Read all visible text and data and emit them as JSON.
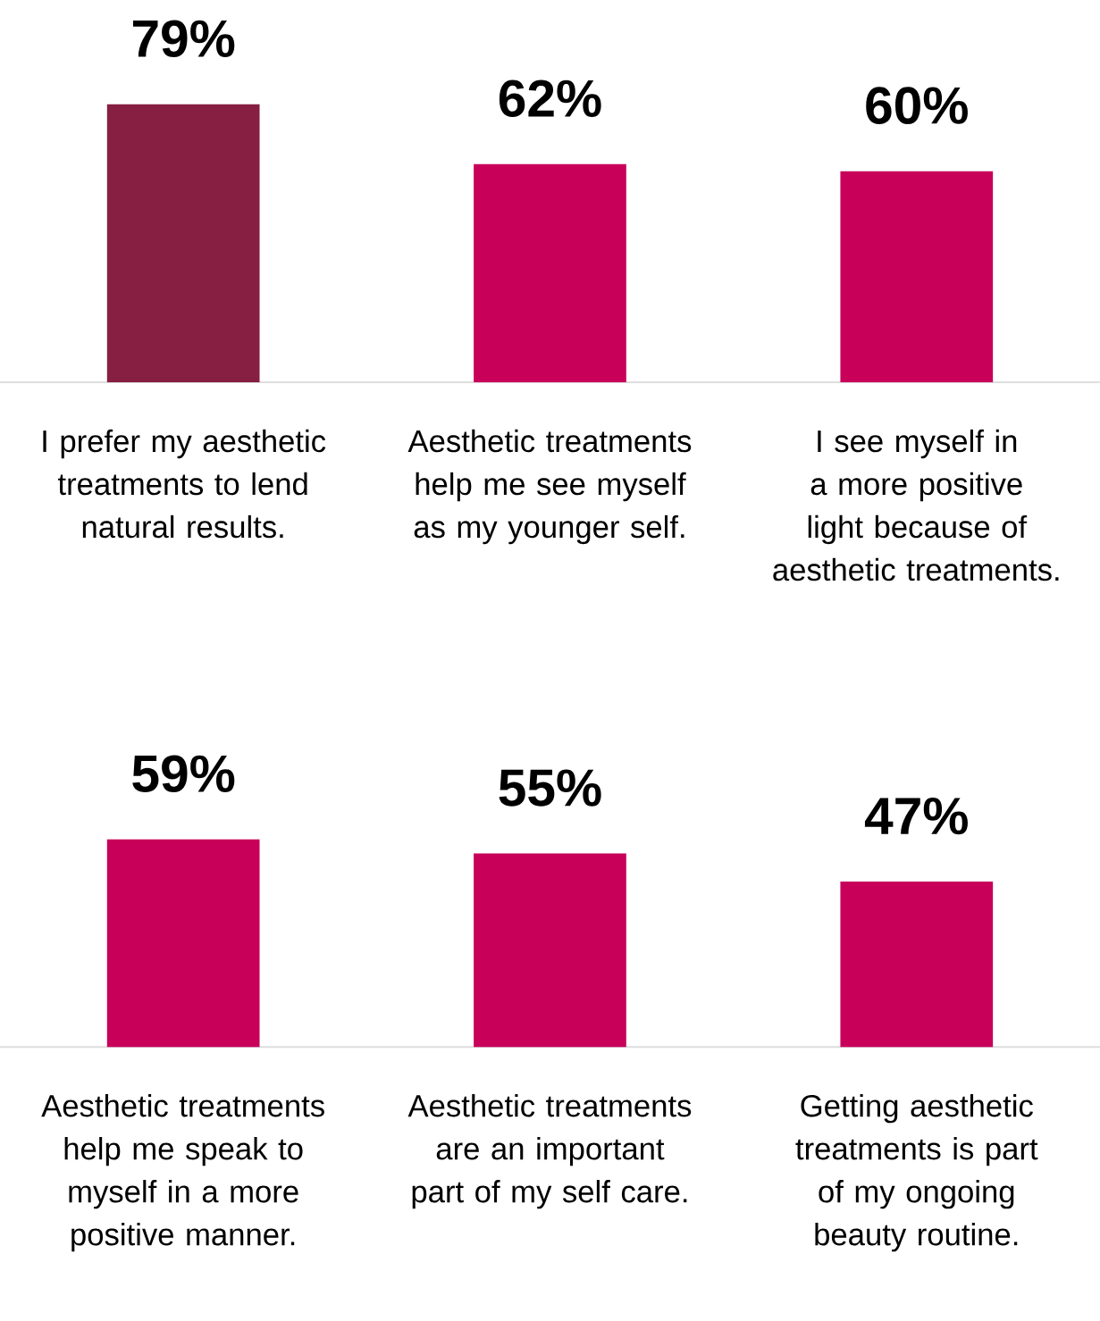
{
  "chart_data": [
    {
      "type": "bar",
      "categories": [
        "I prefer my aesthetic treatments to lend natural results.",
        "Aesthetic treatments help me see myself as my younger self.",
        "I see myself in a more positive light because of aesthetic treatments."
      ],
      "values": [
        79,
        62,
        60
      ],
      "colors": [
        "#861f41",
        "#c8005a",
        "#c8005a"
      ],
      "value_labels": [
        "79%",
        "62%",
        "60%"
      ]
    },
    {
      "type": "bar",
      "categories": [
        "Aesthetic treatments help me speak to myself in a more positive manner.",
        "Aesthetic treatments are an important part of my self care.",
        "Getting aesthetic treatments is part of my ongoing beauty routine."
      ],
      "values": [
        59,
        55,
        47
      ],
      "colors": [
        "#c8005a",
        "#c8005a",
        "#c8005a"
      ],
      "value_labels": [
        "59%",
        "55%",
        "47%"
      ]
    }
  ]
}
